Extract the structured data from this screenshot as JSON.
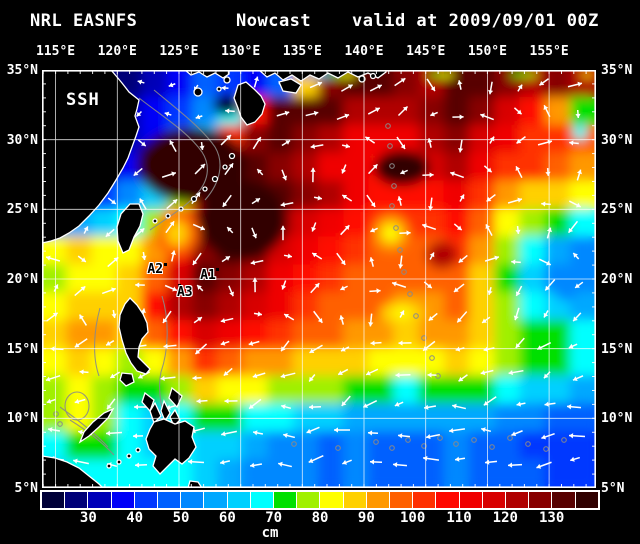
{
  "title": {
    "model": "NRL EASNFS",
    "product": "Nowcast",
    "valid": "valid at 2009/09/01 00Z"
  },
  "map": {
    "field_label": "SSH",
    "lon_range": [
      113.9,
      158.8
    ],
    "lat_range": [
      5,
      35
    ],
    "grid_step_deg": 5,
    "lon_ticks": [
      {
        "value": 115,
        "label": "115°E"
      },
      {
        "value": 120,
        "label": "120°E"
      },
      {
        "value": 125,
        "label": "125°E"
      },
      {
        "value": 130,
        "label": "130°E"
      },
      {
        "value": 135,
        "label": "135°E"
      },
      {
        "value": 140,
        "label": "140°E"
      },
      {
        "value": 145,
        "label": "145°E"
      },
      {
        "value": 150,
        "label": "150°E"
      },
      {
        "value": 155,
        "label": "155°E"
      }
    ],
    "lat_ticks": [
      {
        "value": 35,
        "label": "35°N"
      },
      {
        "value": 30,
        "label": "30°N"
      },
      {
        "value": 25,
        "label": "25°N"
      },
      {
        "value": 20,
        "label": "20°N"
      },
      {
        "value": 15,
        "label": "15°N"
      },
      {
        "value": 10,
        "label": "10°N"
      },
      {
        "value": 5,
        "label": "5°N"
      }
    ],
    "annotations": [
      {
        "label": "A1",
        "lon": 128.1,
        "lat": 20.7
      },
      {
        "label": "A2",
        "lon": 123.9,
        "lat": 21.1
      },
      {
        "label": "A3",
        "lon": 125.0,
        "lat": 19.6
      }
    ],
    "land_color": "#000000",
    "coast_color": "#ffffff",
    "contour_color": "#8a8a8a",
    "vector_color": "#ffffff",
    "gridline_color": "#ffffff"
  },
  "colorbar": {
    "unit": "cm",
    "value_min": 20,
    "value_max": 140,
    "step": 5,
    "tick_values": [
      30,
      40,
      50,
      60,
      70,
      80,
      90,
      100,
      110,
      120,
      130
    ],
    "colors": [
      "#000038",
      "#000078",
      "#0000b8",
      "#0000f8",
      "#0038ff",
      "#0060ff",
      "#0088ff",
      "#00a8ff",
      "#00d0ff",
      "#00ffff",
      "#00e000",
      "#a0f000",
      "#ffff00",
      "#ffd000",
      "#ff9800",
      "#ff6000",
      "#ff3000",
      "#ff0800",
      "#f00000",
      "#d80000",
      "#b00000",
      "#880000",
      "#580000",
      "#300000"
    ]
  },
  "chart_data": {
    "type": "heatmap",
    "variable": "sea surface height nowcast",
    "units": "cm",
    "lon_start": 114,
    "lon_step": 2,
    "lat_start": 34,
    "lat_step": -2,
    "grid": [
      [
        30,
        30,
        28,
        28,
        30,
        38,
        45,
        40,
        38,
        45,
        85,
        125,
        133,
        133,
        128,
        124,
        133,
        133,
        128,
        120,
        128,
        124
      ],
      [
        30,
        30,
        30,
        32,
        36,
        42,
        50,
        65,
        105,
        133,
        133,
        130,
        124,
        120,
        120,
        128,
        133,
        128,
        118,
        108,
        90,
        72
      ],
      [
        30,
        30,
        32,
        34,
        38,
        46,
        62,
        100,
        128,
        133,
        128,
        120,
        114,
        110,
        114,
        124,
        128,
        118,
        110,
        104,
        102,
        98
      ],
      [
        30,
        31,
        33,
        36,
        46,
        56,
        82,
        118,
        133,
        128,
        124,
        114,
        110,
        106,
        110,
        118,
        124,
        114,
        104,
        100,
        98,
        94
      ],
      [
        33,
        35,
        40,
        50,
        62,
        78,
        110,
        128,
        133,
        133,
        128,
        120,
        114,
        109,
        105,
        109,
        114,
        104,
        94,
        88,
        86,
        83
      ],
      [
        50,
        55,
        60,
        66,
        78,
        100,
        124,
        133,
        128,
        124,
        119,
        114,
        109,
        104,
        100,
        104,
        107,
        98,
        84,
        78,
        73,
        68
      ],
      [
        84,
        86,
        84,
        84,
        94,
        114,
        128,
        133,
        128,
        119,
        114,
        109,
        104,
        99,
        97,
        99,
        101,
        93,
        78,
        68,
        58,
        53
      ],
      [
        78,
        82,
        84,
        88,
        99,
        118,
        133,
        128,
        124,
        114,
        109,
        104,
        99,
        97,
        95,
        97,
        99,
        88,
        73,
        63,
        52,
        50
      ],
      [
        82,
        86,
        88,
        89,
        108,
        124,
        128,
        124,
        119,
        111,
        104,
        99,
        97,
        95,
        93,
        94,
        95,
        87,
        77,
        69,
        60,
        57
      ],
      [
        88,
        90,
        92,
        86,
        95,
        109,
        118,
        114,
        109,
        104,
        99,
        95,
        93,
        91,
        89,
        91,
        93,
        87,
        79,
        74,
        71,
        69
      ],
      [
        82,
        86,
        83,
        76,
        84,
        94,
        104,
        99,
        94,
        91,
        89,
        87,
        85,
        83,
        81,
        83,
        85,
        81,
        77,
        74,
        71,
        69
      ],
      [
        76,
        81,
        79,
        70,
        74,
        79,
        87,
        84,
        81,
        79,
        77,
        75,
        73,
        71,
        69,
        71,
        73,
        71,
        67,
        64,
        61,
        59
      ],
      [
        79,
        84,
        79,
        69,
        64,
        69,
        74,
        71,
        67,
        65,
        63,
        61,
        59,
        57,
        55,
        57,
        59,
        57,
        53,
        51,
        49,
        47
      ],
      [
        69,
        74,
        72,
        66,
        64,
        66,
        63,
        61,
        57,
        54,
        51,
        49,
        50,
        48,
        47,
        48,
        50,
        48,
        46,
        44,
        42,
        41
      ],
      [
        64,
        66,
        68,
        66,
        68,
        66,
        60,
        58,
        54,
        52,
        50,
        48,
        50,
        47,
        46,
        48,
        50,
        49,
        47,
        45,
        44,
        43
      ]
    ]
  }
}
